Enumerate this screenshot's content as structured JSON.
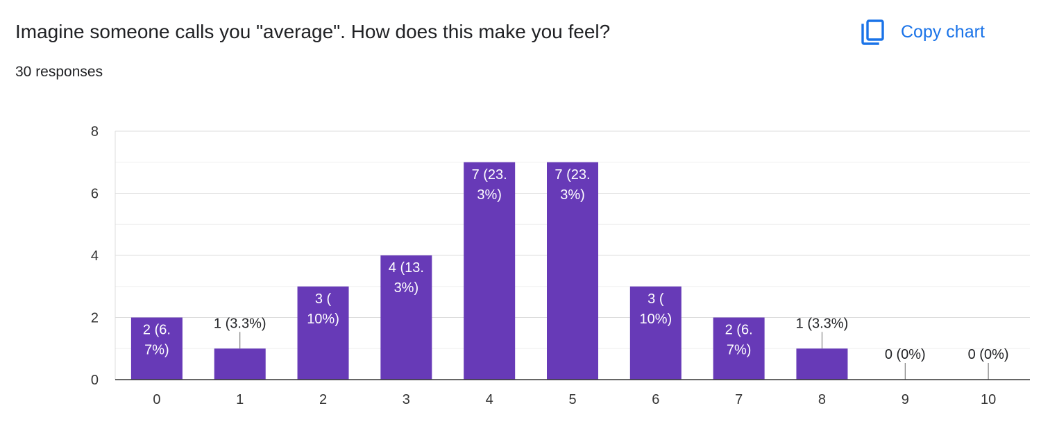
{
  "header": {
    "title": "Imagine someone calls you \"average\". How does this make you feel?",
    "responses": "30 responses",
    "copy_label": "Copy chart"
  },
  "colors": {
    "bar": "#673ab7",
    "accent": "#1a73e8",
    "grid": "#e6e6e6",
    "axis": "#333333"
  },
  "icons": {
    "copy": "copy-icon"
  },
  "chart_data": {
    "type": "bar",
    "categories": [
      "0",
      "1",
      "2",
      "3",
      "4",
      "5",
      "6",
      "7",
      "8",
      "9",
      "10"
    ],
    "values": [
      2,
      1,
      3,
      4,
      7,
      7,
      3,
      2,
      1,
      0,
      0
    ],
    "data_labels": [
      [
        "2 (6.",
        "7%)"
      ],
      [
        "1 (3.3%)"
      ],
      [
        "3 (",
        "10%)"
      ],
      [
        "4 (13.",
        "3%)"
      ],
      [
        "7 (23.",
        "3%)"
      ],
      [
        "7 (23.",
        "3%)"
      ],
      [
        "3 (",
        "10%)"
      ],
      [
        "2 (6.",
        "7%)"
      ],
      [
        "1 (3.3%)"
      ],
      [
        "0 (0%)"
      ],
      [
        "0 (0%)"
      ]
    ],
    "yticks": [
      0,
      2,
      4,
      6,
      8
    ],
    "ylim": [
      0,
      8
    ],
    "xlabel": "",
    "ylabel": "",
    "grid": true,
    "legend": "none"
  }
}
